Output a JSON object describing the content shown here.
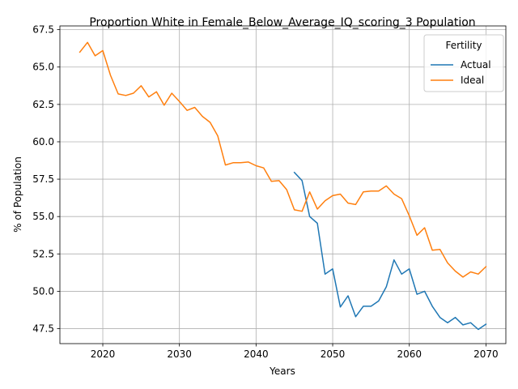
{
  "chart_data": {
    "type": "line",
    "title": "Proportion White in Female_Below_Average_IQ_scoring_3 Population",
    "xlabel": "Years",
    "ylabel": "% of Population",
    "xlim": [
      2014.4,
      2072.6
    ],
    "ylim": [
      46.5,
      67.75
    ],
    "xticks": [
      2020,
      2030,
      2040,
      2050,
      2060,
      2070
    ],
    "yticks": [
      47.5,
      50.0,
      52.5,
      55.0,
      57.5,
      60.0,
      62.5,
      65.0,
      67.5
    ],
    "grid": true,
    "legend": {
      "title": "Fertility",
      "position": "top-right"
    },
    "series": [
      {
        "name": "Actual",
        "color": "#1f77b4",
        "x": [
          2045,
          2046,
          2047,
          2048,
          2049,
          2050,
          2051,
          2052,
          2053,
          2054,
          2055,
          2056,
          2057,
          2058,
          2059,
          2060,
          2061,
          2062,
          2063,
          2064,
          2065,
          2066,
          2067,
          2068,
          2069,
          2070
        ],
        "y": [
          57.95,
          57.4,
          55.0,
          54.55,
          51.15,
          51.5,
          48.95,
          49.7,
          48.3,
          49.0,
          49.0,
          49.35,
          50.3,
          52.1,
          51.15,
          51.5,
          49.8,
          50.0,
          49.0,
          48.25,
          47.9,
          48.25,
          47.75,
          47.9,
          47.45,
          47.8
        ]
      },
      {
        "name": "Ideal",
        "color": "#ff7f0e",
        "x": [
          2017,
          2018,
          2019,
          2020,
          2021,
          2022,
          2023,
          2024,
          2025,
          2026,
          2027,
          2028,
          2029,
          2030,
          2031,
          2032,
          2033,
          2034,
          2035,
          2036,
          2037,
          2038,
          2039,
          2040,
          2041,
          2042,
          2043,
          2044,
          2045,
          2046,
          2047,
          2048,
          2049,
          2050,
          2051,
          2052,
          2053,
          2054,
          2055,
          2056,
          2057,
          2058,
          2059,
          2060,
          2061,
          2062,
          2063,
          2064,
          2065,
          2066,
          2067,
          2068,
          2069,
          2070
        ],
        "y": [
          66.0,
          66.65,
          65.75,
          66.1,
          64.45,
          63.2,
          63.1,
          63.25,
          63.75,
          63.0,
          63.35,
          62.45,
          63.25,
          62.7,
          62.1,
          62.3,
          61.7,
          61.3,
          60.4,
          58.45,
          58.6,
          58.6,
          58.65,
          58.4,
          58.25,
          57.35,
          57.4,
          56.8,
          55.45,
          55.35,
          56.65,
          55.5,
          56.05,
          56.4,
          56.5,
          55.9,
          55.8,
          56.65,
          56.7,
          56.7,
          57.05,
          56.5,
          56.2,
          55.05,
          53.75,
          54.25,
          52.75,
          52.8,
          51.9,
          51.35,
          50.95,
          51.3,
          51.15,
          51.65
        ]
      }
    ]
  }
}
